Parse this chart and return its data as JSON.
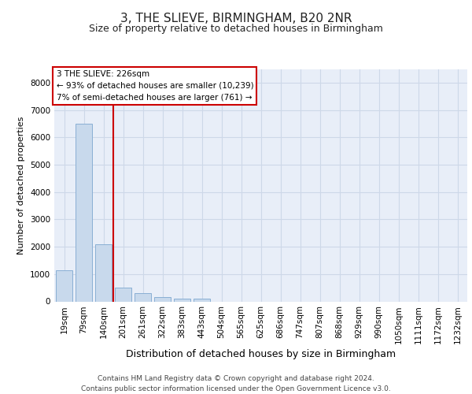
{
  "title": "3, THE SLIEVE, BIRMINGHAM, B20 2NR",
  "subtitle": "Size of property relative to detached houses in Birmingham",
  "xlabel": "Distribution of detached houses by size in Birmingham",
  "ylabel": "Number of detached properties",
  "bar_color": "#c8d9ec",
  "bar_edge_color": "#89afd4",
  "grid_color": "#cdd8e8",
  "background_color": "#e8eef8",
  "categories": [
    "19sqm",
    "79sqm",
    "140sqm",
    "201sqm",
    "261sqm",
    "322sqm",
    "383sqm",
    "443sqm",
    "504sqm",
    "565sqm",
    "625sqm",
    "686sqm",
    "747sqm",
    "807sqm",
    "868sqm",
    "929sqm",
    "990sqm",
    "1050sqm",
    "1111sqm",
    "1172sqm",
    "1232sqm"
  ],
  "values": [
    1150,
    6500,
    2100,
    490,
    305,
    170,
    115,
    95,
    0,
    0,
    0,
    0,
    0,
    0,
    0,
    0,
    0,
    0,
    0,
    0,
    0
  ],
  "vline_x": 2.5,
  "vline_color": "#cc0000",
  "property_label": "3 THE SLIEVE: 226sqm",
  "annotation_line1": "← 93% of detached houses are smaller (10,239)",
  "annotation_line2": "7% of semi-detached houses are larger (761) →",
  "footer_line1": "Contains HM Land Registry data © Crown copyright and database right 2024.",
  "footer_line2": "Contains public sector information licensed under the Open Government Licence v3.0.",
  "ylim": [
    0,
    8500
  ],
  "yticks": [
    0,
    1000,
    2000,
    3000,
    4000,
    5000,
    6000,
    7000,
    8000
  ],
  "title_fontsize": 11,
  "subtitle_fontsize": 9,
  "ylabel_fontsize": 8,
  "xlabel_fontsize": 9,
  "tick_fontsize": 7.5,
  "annotation_fontsize": 7.5,
  "footer_fontsize": 6.5
}
